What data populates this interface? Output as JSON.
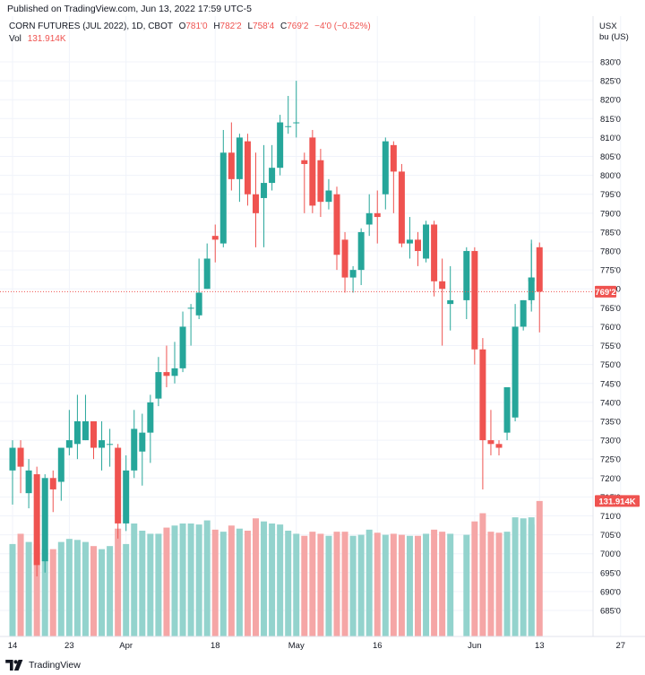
{
  "header": {
    "publish_line": "Published on TradingView.com, Jun 13, 2022 17:59 UTC-5",
    "symbol": "CORN FUTURES (JUL 2022), 1D, CBOT",
    "ohlc": [
      {
        "label": "O",
        "value": "781'0"
      },
      {
        "label": "H",
        "value": "782'2"
      },
      {
        "label": "L",
        "value": "758'4"
      },
      {
        "label": "C",
        "value": "769'2"
      }
    ],
    "change": "−4'0 (−0.52%)",
    "vol_label": "Vol",
    "vol_value": "131.914K"
  },
  "axis": {
    "currency": "USX",
    "unit": "bu (US)",
    "last_price_label": "769'2",
    "last_volume_label": "131.914K"
  },
  "footer": {
    "brand": "TradingView",
    "logo_icon": "tradingview-logo-icon"
  },
  "colors": {
    "up": "#26a69a",
    "down": "#ef5350",
    "up_volume": "#93d3cd",
    "down_volume": "#f5a6a6",
    "price_line": "#ef5350"
  },
  "chart_data": {
    "type": "candlestick",
    "title": "CORN FUTURES (JUL 2022), 1D, CBOT",
    "y_unit": "USX / bu (US)",
    "ylim": [
      680,
      832
    ],
    "y_tick_values": [
      685,
      690,
      695,
      700,
      705,
      710,
      715,
      720,
      725,
      730,
      735,
      740,
      745,
      750,
      755,
      760,
      765,
      770,
      775,
      780,
      785,
      790,
      795,
      800,
      805,
      810,
      815,
      820,
      825,
      830
    ],
    "y_tick_labels": [
      "685'0",
      "690'0",
      "695'0",
      "700'0",
      "705'0",
      "710'0",
      "715'0",
      "720'0",
      "725'0",
      "730'0",
      "735'0",
      "740'0",
      "745'0",
      "750'0",
      "755'0",
      "760'0",
      "765'0",
      "770'0",
      "775'0",
      "780'0",
      "785'0",
      "790'0",
      "795'0",
      "800'0",
      "805'0",
      "810'0",
      "815'0",
      "820'0",
      "825'0",
      "830'0"
    ],
    "x_ticks": [
      {
        "label": "14",
        "date": "2022-03-14"
      },
      {
        "label": "23",
        "date": "2022-03-23"
      },
      {
        "label": "Apr",
        "date": "2022-04-01"
      },
      {
        "label": "18",
        "date": "2022-04-18"
      },
      {
        "label": "May",
        "date": "2022-05-02"
      },
      {
        "label": "16",
        "date": "2022-05-16"
      },
      {
        "label": "Jun",
        "date": "2022-06-01"
      },
      {
        "label": "13",
        "date": "2022-06-13"
      },
      {
        "label": "27",
        "date": "2022-06-27"
      }
    ],
    "candles": [
      {
        "date": "2022-03-14",
        "o": 722,
        "h": 730,
        "l": 713,
        "c": 728,
        "v": 90
      },
      {
        "date": "2022-03-15",
        "o": 728,
        "h": 730,
        "l": 716,
        "c": 723,
        "v": 100
      },
      {
        "date": "2022-03-16",
        "o": 716,
        "h": 725,
        "l": 712,
        "c": 722,
        "v": 92
      },
      {
        "date": "2022-03-17",
        "o": 721,
        "h": 723,
        "l": 694,
        "c": 697,
        "v": 90
      },
      {
        "date": "2022-03-18",
        "o": 698,
        "h": 721,
        "l": 695,
        "c": 720,
        "v": 85
      },
      {
        "date": "2022-03-21",
        "o": 720,
        "h": 722,
        "l": 711,
        "c": 717,
        "v": 85
      },
      {
        "date": "2022-03-22",
        "o": 719,
        "h": 728,
        "l": 714,
        "c": 728,
        "v": 92
      },
      {
        "date": "2022-03-23",
        "o": 728,
        "h": 738,
        "l": 726,
        "c": 730,
        "v": 95
      },
      {
        "date": "2022-03-24",
        "o": 729,
        "h": 742,
        "l": 725,
        "c": 735,
        "v": 94
      },
      {
        "date": "2022-03-25",
        "o": 730,
        "h": 742,
        "l": 730,
        "c": 735,
        "v": 92
      },
      {
        "date": "2022-03-28",
        "o": 735,
        "h": 735,
        "l": 725,
        "c": 728,
        "v": 88
      },
      {
        "date": "2022-03-29",
        "o": 728,
        "h": 735,
        "l": 722,
        "c": 730,
        "v": 85
      },
      {
        "date": "2022-03-30",
        "o": 729,
        "h": 733,
        "l": 723,
        "c": 729,
        "v": 88
      },
      {
        "date": "2022-03-31",
        "o": 728,
        "h": 729,
        "l": 704,
        "c": 708,
        "v": 105
      },
      {
        "date": "2022-04-01",
        "o": 708,
        "h": 726,
        "l": 706,
        "c": 722,
        "v": 90
      },
      {
        "date": "2022-04-04",
        "o": 722,
        "h": 738,
        "l": 720,
        "c": 733,
        "v": 110
      },
      {
        "date": "2022-04-05",
        "o": 727,
        "h": 737,
        "l": 718,
        "c": 732,
        "v": 103
      },
      {
        "date": "2022-04-06",
        "o": 732,
        "h": 742,
        "l": 724,
        "c": 740,
        "v": 100
      },
      {
        "date": "2022-04-07",
        "o": 741,
        "h": 752,
        "l": 739,
        "c": 748,
        "v": 100
      },
      {
        "date": "2022-04-08",
        "o": 748,
        "h": 755,
        "l": 744,
        "c": 747,
        "v": 106
      },
      {
        "date": "2022-04-11",
        "o": 747,
        "h": 756,
        "l": 745,
        "c": 749,
        "v": 108
      },
      {
        "date": "2022-04-12",
        "o": 749,
        "h": 764,
        "l": 748,
        "c": 760,
        "v": 110
      },
      {
        "date": "2022-04-13",
        "o": 765,
        "h": 766,
        "l": 755,
        "c": 765,
        "v": 110
      },
      {
        "date": "2022-04-14",
        "o": 763,
        "h": 778,
        "l": 762,
        "c": 769,
        "v": 109
      },
      {
        "date": "2022-04-15",
        "o": 770,
        "h": 782,
        "l": 770,
        "c": 778,
        "v": 113
      },
      {
        "date": "2022-04-18",
        "o": 784,
        "h": 787,
        "l": 777,
        "c": 783,
        "v": 104
      },
      {
        "date": "2022-04-19",
        "o": 782,
        "h": 812,
        "l": 781,
        "c": 806,
        "v": 102
      },
      {
        "date": "2022-04-20",
        "o": 806,
        "h": 814,
        "l": 796,
        "c": 799,
        "v": 108
      },
      {
        "date": "2022-04-21",
        "o": 799,
        "h": 811,
        "l": 793,
        "c": 810,
        "v": 105
      },
      {
        "date": "2022-04-22",
        "o": 809,
        "h": 811,
        "l": 792,
        "c": 795,
        "v": 103
      },
      {
        "date": "2022-04-25",
        "o": 795,
        "h": 806,
        "l": 781,
        "c": 790,
        "v": 115
      },
      {
        "date": "2022-04-26",
        "o": 794,
        "h": 808,
        "l": 781,
        "c": 798,
        "v": 112
      },
      {
        "date": "2022-04-27",
        "o": 798,
        "h": 808,
        "l": 796,
        "c": 802,
        "v": 110
      },
      {
        "date": "2022-04-28",
        "o": 802,
        "h": 816,
        "l": 800,
        "c": 814,
        "v": 109
      },
      {
        "date": "2022-04-29",
        "o": 813,
        "h": 821,
        "l": 811,
        "c": 813,
        "v": 103
      },
      {
        "date": "2022-05-02",
        "o": 814,
        "h": 825,
        "l": 810,
        "c": 814,
        "v": 100
      },
      {
        "date": "2022-05-03",
        "o": 804,
        "h": 806,
        "l": 790,
        "c": 803,
        "v": 98
      },
      {
        "date": "2022-05-04",
        "o": 810,
        "h": 812,
        "l": 790,
        "c": 792,
        "v": 102
      },
      {
        "date": "2022-05-05",
        "o": 804,
        "h": 807,
        "l": 789,
        "c": 793,
        "v": 100
      },
      {
        "date": "2022-05-06",
        "o": 793,
        "h": 799,
        "l": 791,
        "c": 796,
        "v": 98
      },
      {
        "date": "2022-05-09",
        "o": 795,
        "h": 797,
        "l": 775,
        "c": 779,
        "v": 102
      },
      {
        "date": "2022-05-10",
        "o": 783,
        "h": 785,
        "l": 769,
        "c": 773,
        "v": 102
      },
      {
        "date": "2022-05-11",
        "o": 773,
        "h": 776,
        "l": 769,
        "c": 775,
        "v": 98
      },
      {
        "date": "2022-05-12",
        "o": 775,
        "h": 786,
        "l": 771,
        "c": 785,
        "v": 99
      },
      {
        "date": "2022-05-13",
        "o": 787,
        "h": 795,
        "l": 784,
        "c": 790,
        "v": 104
      },
      {
        "date": "2022-05-16",
        "o": 790,
        "h": 796,
        "l": 782,
        "c": 789,
        "v": 101
      },
      {
        "date": "2022-05-17",
        "o": 795,
        "h": 810,
        "l": 791,
        "c": 809,
        "v": 99
      },
      {
        "date": "2022-05-18",
        "o": 808,
        "h": 809,
        "l": 790,
        "c": 801,
        "v": 100
      },
      {
        "date": "2022-05-19",
        "o": 801,
        "h": 803,
        "l": 781,
        "c": 782,
        "v": 99
      },
      {
        "date": "2022-05-20",
        "o": 782,
        "h": 789,
        "l": 778,
        "c": 783,
        "v": 98
      },
      {
        "date": "2022-05-23",
        "o": 783,
        "h": 785,
        "l": 776,
        "c": 780,
        "v": 98
      },
      {
        "date": "2022-05-24",
        "o": 778,
        "h": 788,
        "l": 777,
        "c": 787,
        "v": 100
      },
      {
        "date": "2022-05-25",
        "o": 787,
        "h": 788,
        "l": 768,
        "c": 772,
        "v": 104
      },
      {
        "date": "2022-05-26",
        "o": 772,
        "h": 778,
        "l": 755,
        "c": 770,
        "v": 102
      },
      {
        "date": "2022-05-27",
        "o": 766,
        "h": 776,
        "l": 759,
        "c": 767,
        "v": 100
      },
      {
        "date": "2022-05-31",
        "o": 767,
        "h": 781,
        "l": 762,
        "c": 780,
        "v": 99
      },
      {
        "date": "2022-06-01",
        "o": 780,
        "h": 781,
        "l": 750,
        "c": 754,
        "v": 112
      },
      {
        "date": "2022-06-02",
        "o": 754,
        "h": 757,
        "l": 717,
        "c": 730,
        "v": 120
      },
      {
        "date": "2022-06-03",
        "o": 730,
        "h": 738,
        "l": 726,
        "c": 729,
        "v": 102
      },
      {
        "date": "2022-06-06",
        "o": 729,
        "h": 730,
        "l": 726,
        "c": 728,
        "v": 101
      },
      {
        "date": "2022-06-07",
        "o": 732,
        "h": 743,
        "l": 730,
        "c": 744,
        "v": 102
      },
      {
        "date": "2022-06-08",
        "o": 736,
        "h": 766,
        "l": 735,
        "c": 760,
        "v": 116
      },
      {
        "date": "2022-06-09",
        "o": 760,
        "h": 767,
        "l": 759,
        "c": 767,
        "v": 115
      },
      {
        "date": "2022-06-10",
        "o": 767,
        "h": 783,
        "l": 764,
        "c": 773,
        "v": 116
      },
      {
        "date": "2022-06-11",
        "o": 772,
        "h": 782,
        "l": 766,
        "c": 773,
        "v": 109
      },
      {
        "date": "2022-06-13",
        "o": 781,
        "h": 782.25,
        "l": 758.5,
        "c": 769.25,
        "v": 131.914
      }
    ]
  }
}
